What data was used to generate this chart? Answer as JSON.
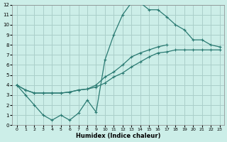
{
  "xlabel": "Humidex (Indice chaleur)",
  "xlim": [
    -0.5,
    23.5
  ],
  "ylim": [
    0,
    12
  ],
  "xticks": [
    0,
    1,
    2,
    3,
    4,
    5,
    6,
    7,
    8,
    9,
    10,
    11,
    12,
    13,
    14,
    15,
    16,
    17,
    18,
    19,
    20,
    21,
    22,
    23
  ],
  "yticks": [
    0,
    1,
    2,
    3,
    4,
    5,
    6,
    7,
    8,
    9,
    10,
    11,
    12
  ],
  "bg_color": "#cceee8",
  "grid_color": "#aacfca",
  "line_color": "#2a7a72",
  "line1_y": [
    4.0,
    3.0,
    2.0,
    1.0,
    0.5,
    1.0,
    0.5,
    1.2,
    2.5,
    1.3,
    6.5,
    9.0,
    11.0,
    12.2,
    12.2,
    11.5,
    11.5,
    10.8,
    10.0,
    9.5,
    8.5,
    8.5,
    8.0,
    7.8
  ],
  "line2_y": [
    4.0,
    3.5,
    3.2,
    3.2,
    3.2,
    3.2,
    3.3,
    3.5,
    3.6,
    3.8,
    4.2,
    4.8,
    5.2,
    5.8,
    6.3,
    6.8,
    7.2,
    7.3,
    7.5,
    7.5,
    7.5,
    7.5,
    7.5,
    7.5
  ],
  "line3_y": [
    4.0,
    3.5,
    3.2,
    3.2,
    3.2,
    3.2,
    3.3,
    3.5,
    3.6,
    4.0,
    4.8,
    5.3,
    6.0,
    6.8,
    7.2,
    7.5,
    7.8,
    8.0,
    null,
    null,
    null,
    null,
    null,
    null
  ]
}
